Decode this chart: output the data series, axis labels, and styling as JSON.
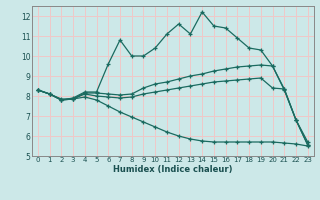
{
  "xlabel": "Humidex (Indice chaleur)",
  "bg_color": "#cce8e8",
  "line_color": "#1a6b60",
  "grid_color": "#f0c8c8",
  "xlim": [
    -0.5,
    23.5
  ],
  "ylim": [
    5,
    12.5
  ],
  "yticks": [
    5,
    6,
    7,
    8,
    9,
    10,
    11,
    12
  ],
  "xticks": [
    0,
    1,
    2,
    3,
    4,
    5,
    6,
    7,
    8,
    9,
    10,
    11,
    12,
    13,
    14,
    15,
    16,
    17,
    18,
    19,
    20,
    21,
    22,
    23
  ],
  "series": [
    [
      8.3,
      8.1,
      7.8,
      7.9,
      8.2,
      8.2,
      9.6,
      10.8,
      10.0,
      10.0,
      10.4,
      11.1,
      11.6,
      11.1,
      12.2,
      11.5,
      11.4,
      10.9,
      10.4,
      10.3,
      9.5,
      8.3,
      6.8,
      5.7
    ],
    [
      8.3,
      8.1,
      7.8,
      7.85,
      8.15,
      8.15,
      8.1,
      8.05,
      8.1,
      8.4,
      8.6,
      8.7,
      8.85,
      9.0,
      9.1,
      9.25,
      9.35,
      9.45,
      9.5,
      9.55,
      9.5,
      8.35,
      6.8,
      5.55
    ],
    [
      8.3,
      8.1,
      7.8,
      7.85,
      8.1,
      8.0,
      7.95,
      7.9,
      7.95,
      8.1,
      8.2,
      8.3,
      8.4,
      8.5,
      8.6,
      8.7,
      8.75,
      8.8,
      8.85,
      8.9,
      8.4,
      8.35,
      6.8,
      5.55
    ],
    [
      8.3,
      8.1,
      7.85,
      7.85,
      7.95,
      7.8,
      7.5,
      7.2,
      6.95,
      6.7,
      6.45,
      6.2,
      6.0,
      5.85,
      5.75,
      5.7,
      5.7,
      5.7,
      5.7,
      5.7,
      5.7,
      5.65,
      5.6,
      5.5
    ]
  ]
}
